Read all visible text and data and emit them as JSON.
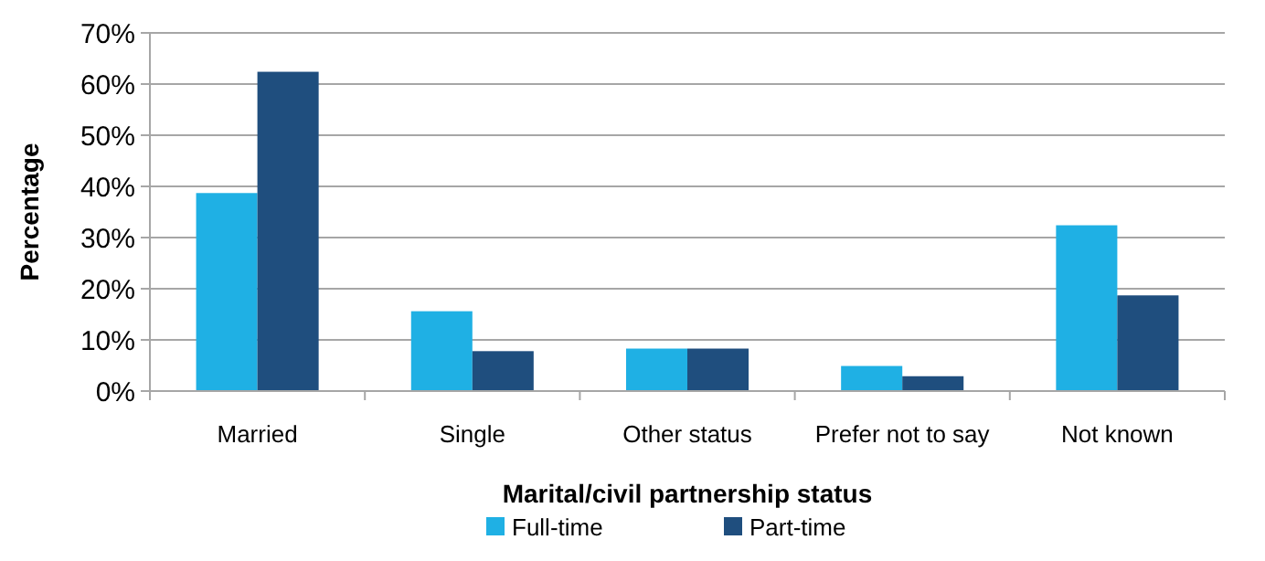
{
  "chart_data": {
    "type": "bar",
    "xlabel": "Marital/civil partnership status",
    "ylabel": "Percentage",
    "categories": [
      "Married",
      "Single",
      "Other status",
      "Prefer not to say",
      "Not known"
    ],
    "series": [
      {
        "name": "Full-time",
        "color": "#1fb0e4",
        "values": [
          38.7,
          15.6,
          8.3,
          4.9,
          32.4
        ]
      },
      {
        "name": "Part-time",
        "color": "#1f4e7e",
        "values": [
          62.4,
          7.8,
          8.3,
          2.9,
          18.7
        ]
      }
    ],
    "ylim": [
      0,
      70
    ],
    "yticks": [
      {
        "value": 0,
        "label": "0%"
      },
      {
        "value": 10,
        "label": "10%"
      },
      {
        "value": 20,
        "label": "20%"
      },
      {
        "value": 30,
        "label": "30%"
      },
      {
        "value": 40,
        "label": "40%"
      },
      {
        "value": 50,
        "label": "50%"
      },
      {
        "value": 60,
        "label": "60%"
      },
      {
        "value": 70,
        "label": "70%"
      }
    ],
    "grid": "y",
    "legend": "bottom"
  }
}
